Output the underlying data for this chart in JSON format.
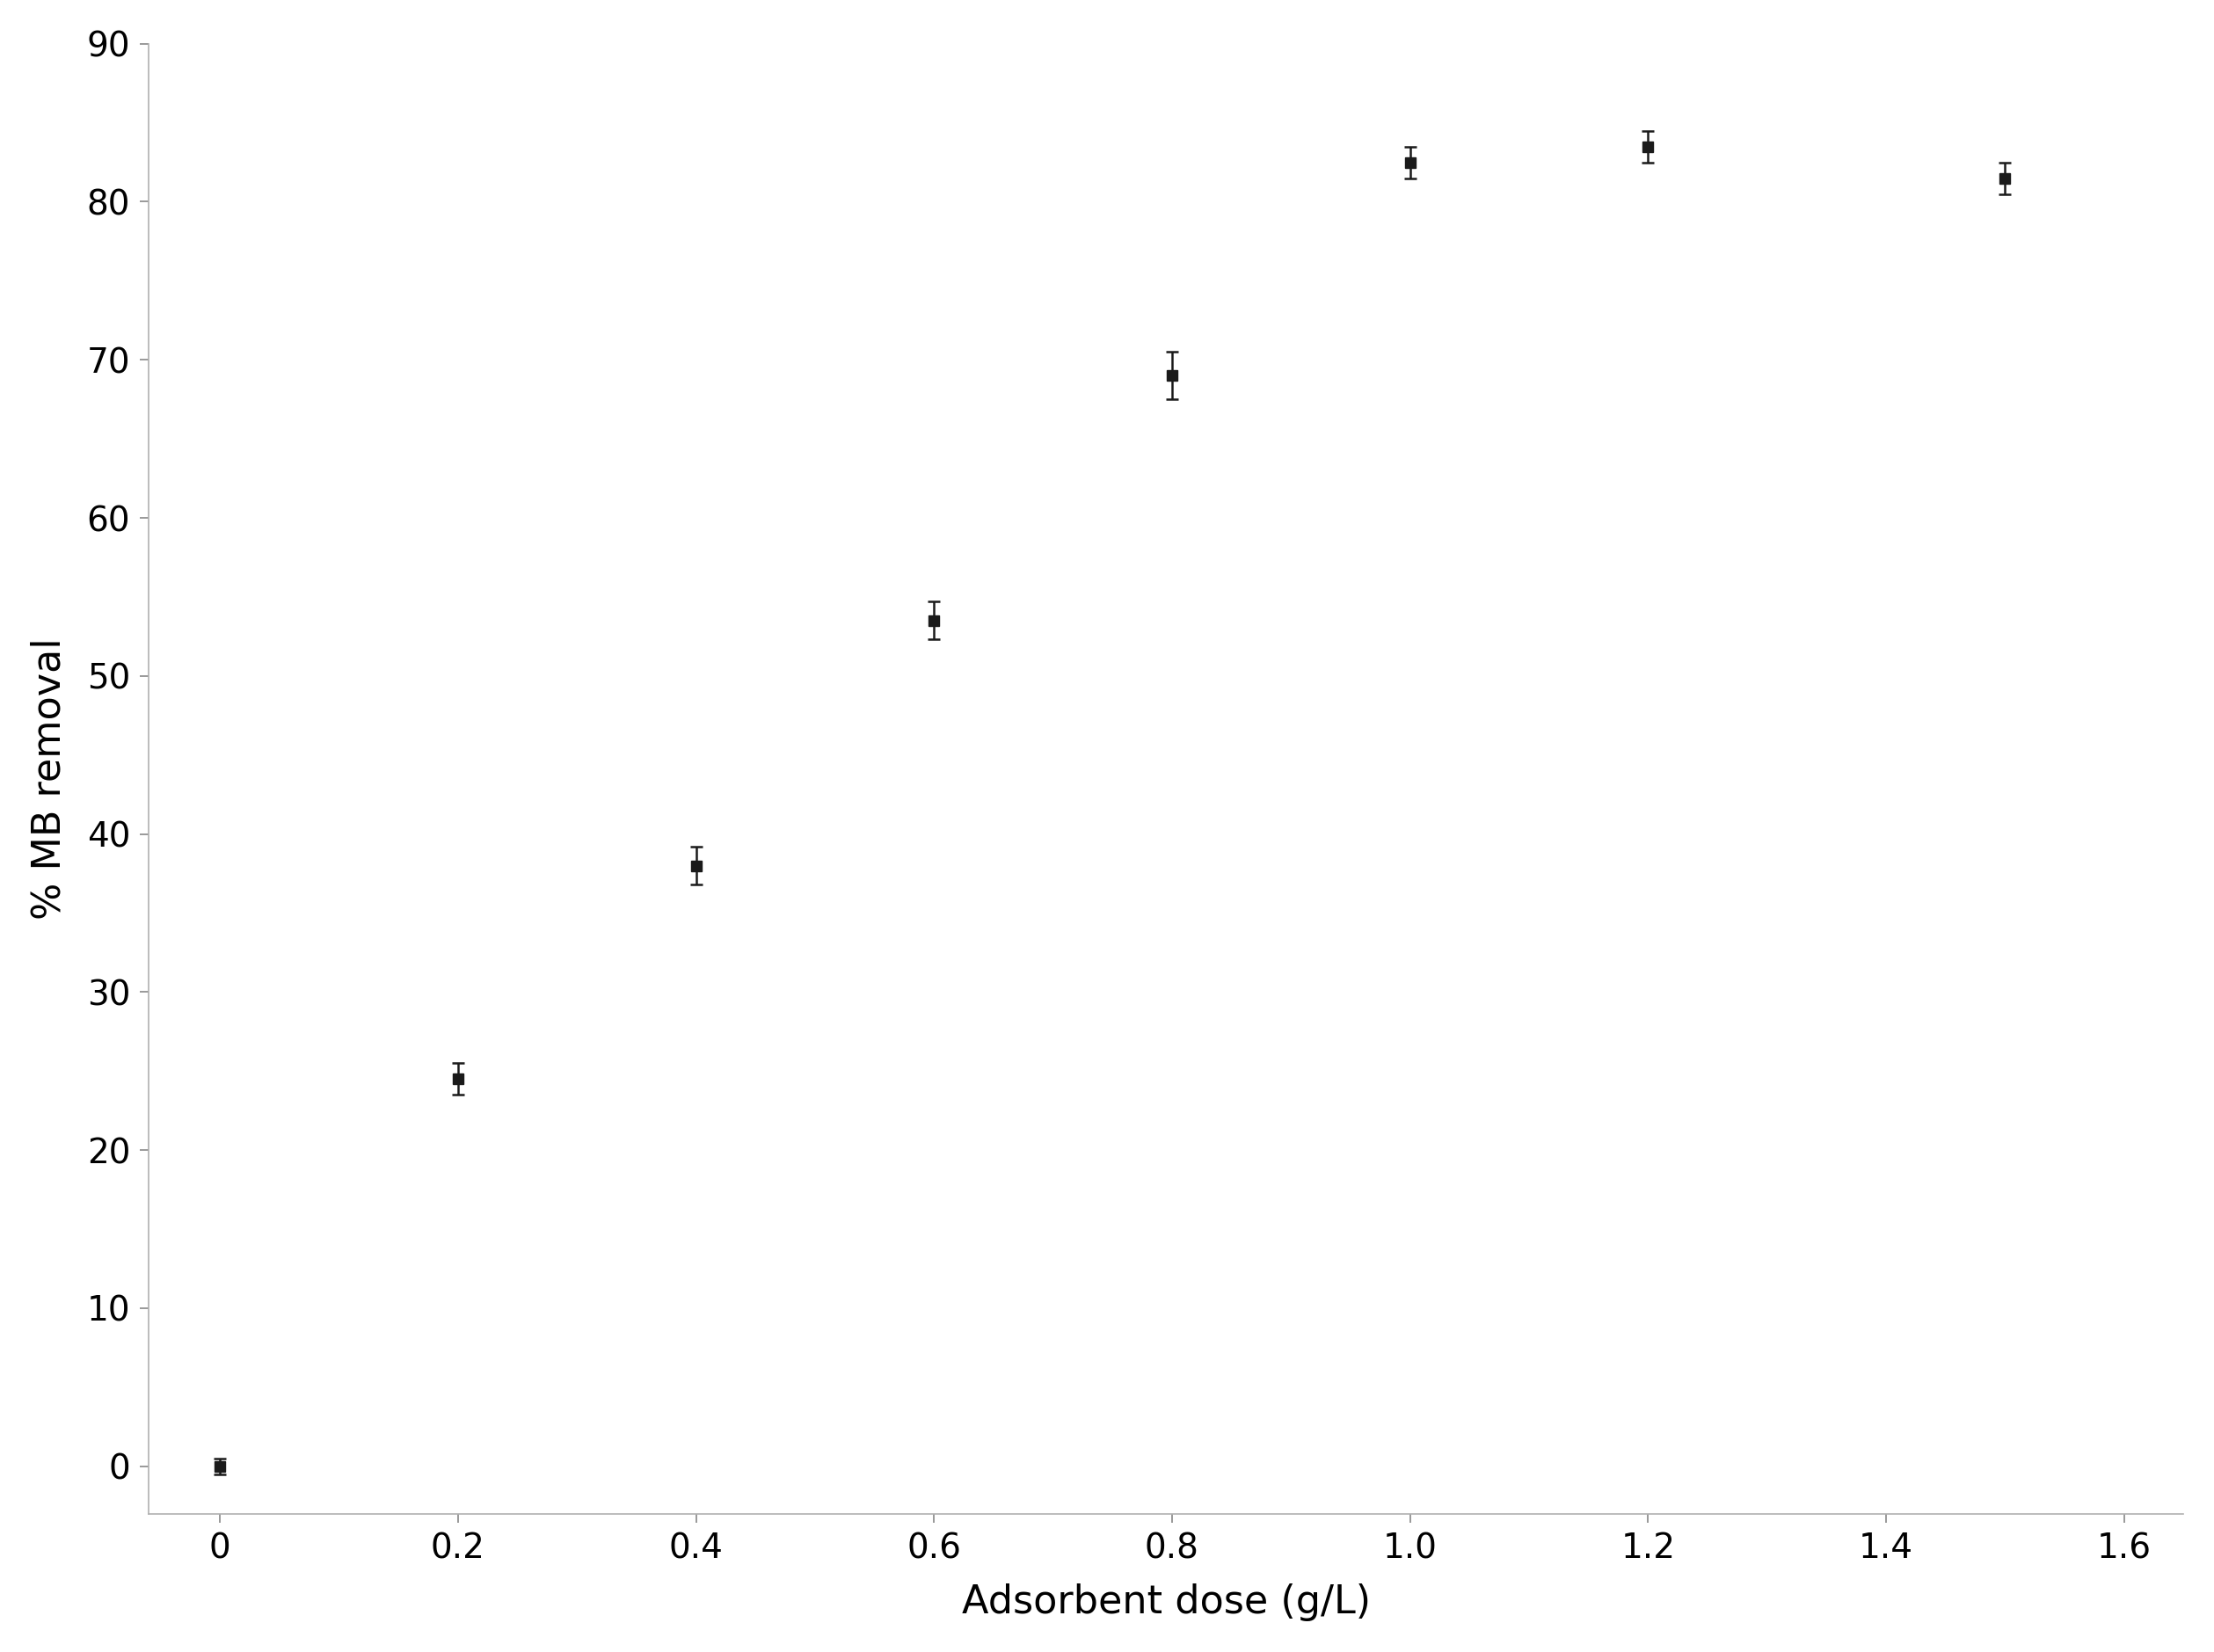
{
  "x": [
    0,
    0.2,
    0.4,
    0.6,
    0.8,
    1.0,
    1.2,
    1.5
  ],
  "y": [
    0.0,
    24.5,
    38.0,
    53.5,
    69.0,
    82.5,
    83.5,
    81.5
  ],
  "yerr": [
    0.5,
    1.0,
    1.2,
    1.2,
    1.5,
    1.0,
    1.0,
    1.0
  ],
  "xlabel": "Adsorbent dose (g/L)",
  "ylabel": "% MB removal",
  "xlim": [
    -0.06,
    1.65
  ],
  "ylim": [
    -3,
    90
  ],
  "xticks": [
    0,
    0.2,
    0.4,
    0.6,
    0.8,
    1.0,
    1.2,
    1.4,
    1.6
  ],
  "yticks": [
    0,
    10,
    20,
    30,
    40,
    50,
    60,
    70,
    80,
    90
  ],
  "marker": "s",
  "marker_color": "#1a1a1a",
  "marker_size": 8,
  "elinewidth": 1.8,
  "capsize": 5,
  "capthick": 1.8,
  "background_color": "#ffffff",
  "axis_color": "#b0b0b0",
  "tick_label_fontsize": 28,
  "axis_label_fontsize": 32
}
